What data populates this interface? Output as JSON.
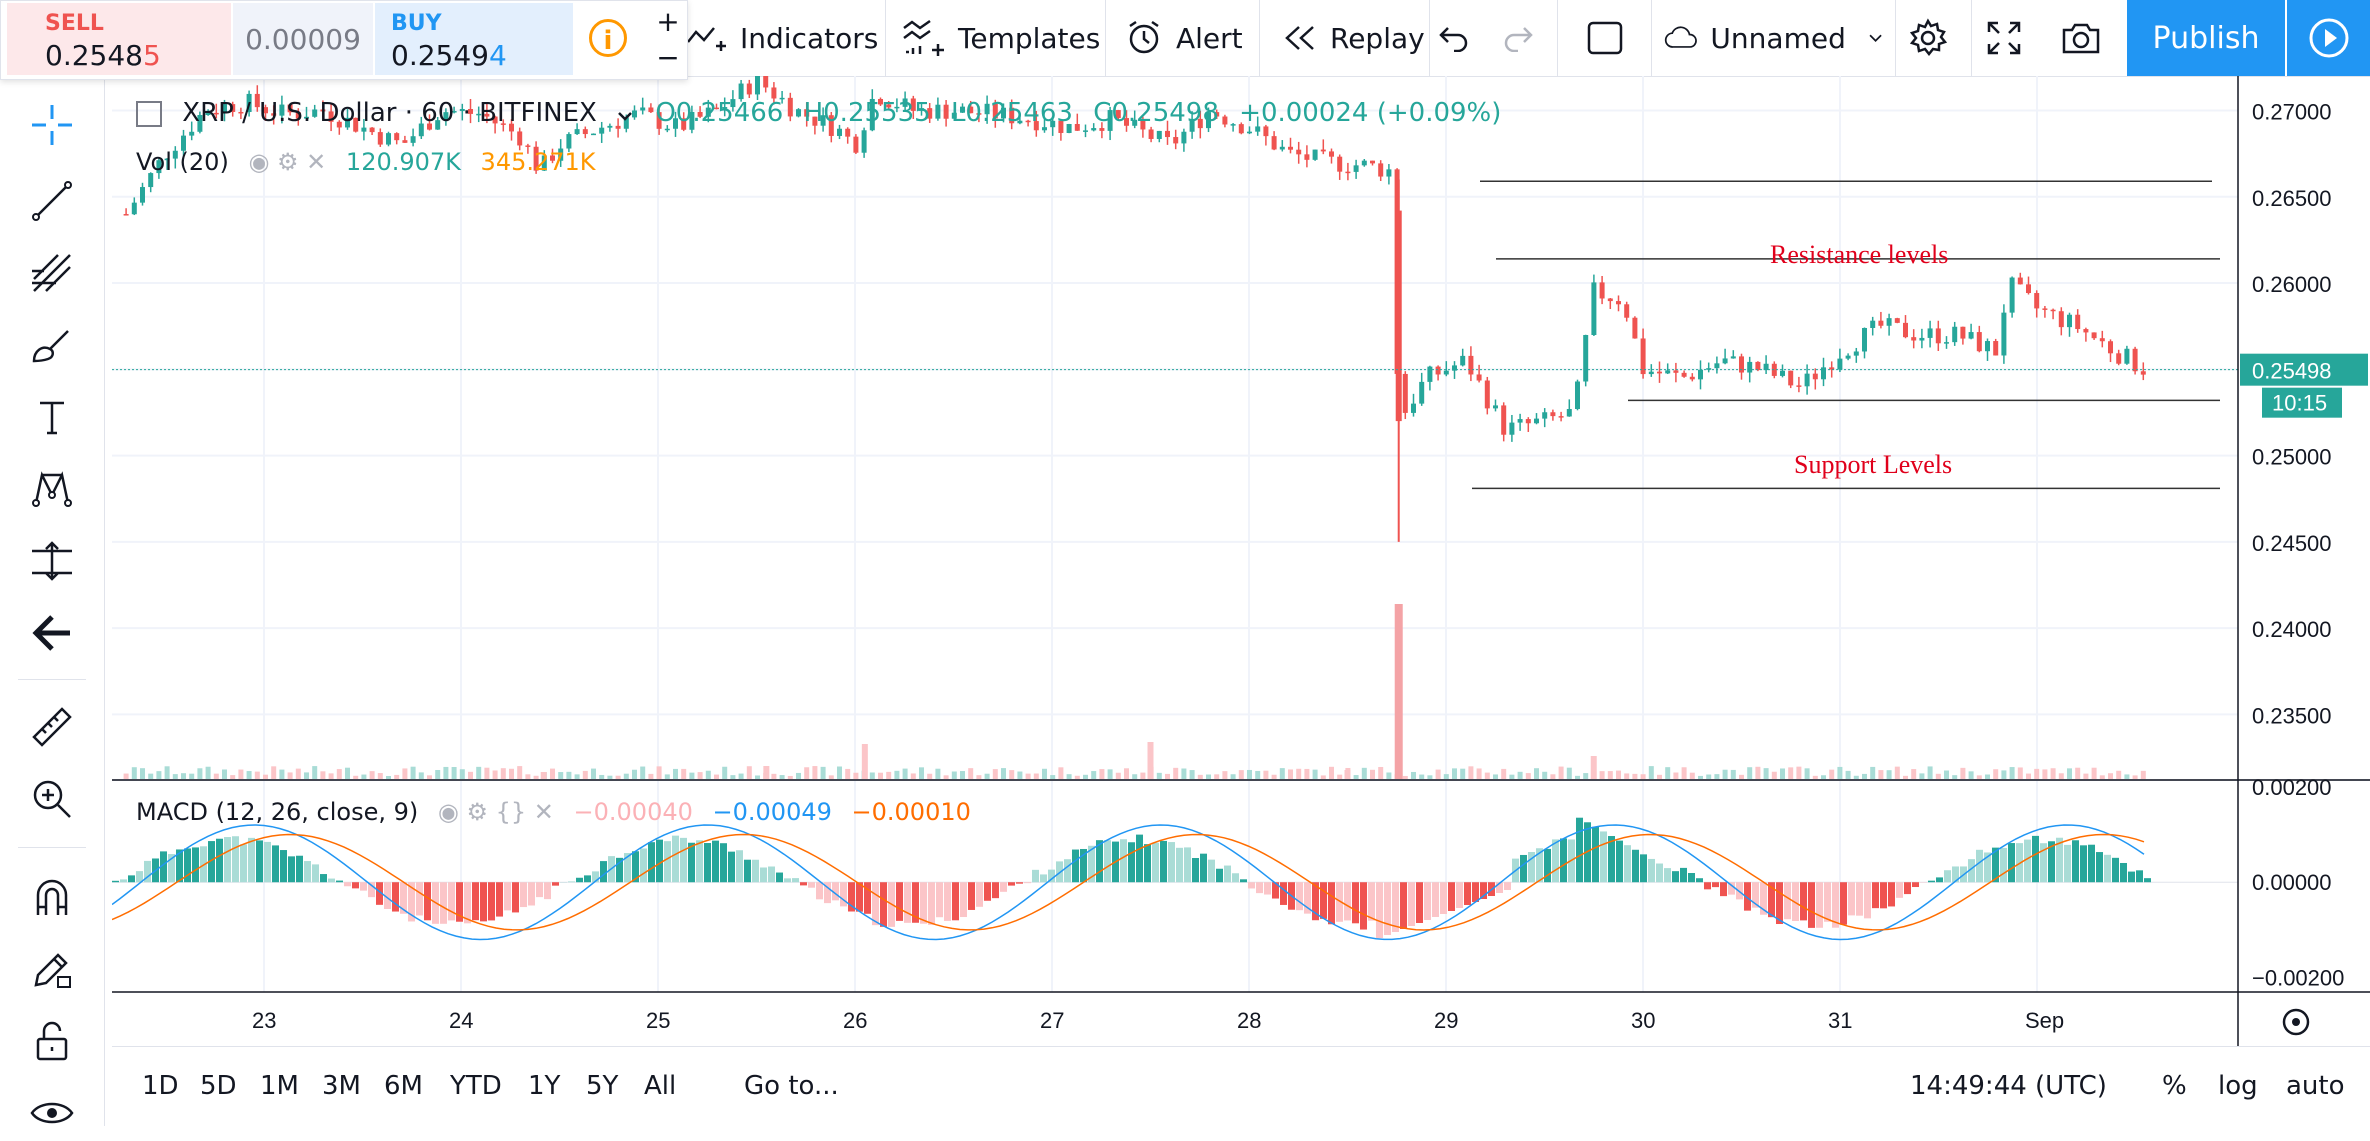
{
  "trade": {
    "sell_label": "SELL",
    "sell_price_main": "0.2548",
    "sell_price_last": "5",
    "spread": "0.00009",
    "buy_label": "BUY",
    "buy_price_main": "0.2549",
    "buy_price_last": "4",
    "info": "i",
    "plus": "+",
    "minus": "−"
  },
  "toolbar": {
    "indicators": "Indicators",
    "templates": "Templates",
    "alert": "Alert",
    "replay": "Replay",
    "layout_name": "Unnamed",
    "publish": "Publish"
  },
  "legend": {
    "symbol": "XRP / U.S. Dollar · 60 · BITFINEX",
    "open": "O0.25466",
    "high": "H0.25535",
    "low": "L0.25463",
    "close": "C0.25498",
    "change": "+0.00024 (+0.09%)",
    "vol_title": "Vol (20)",
    "vol_value": "120.907K",
    "vol_ma": "345.271K",
    "macd_title": "MACD (12, 26, close, 9)",
    "macd_hist": "−0.00040",
    "macd_line": "−0.00049",
    "macd_signal": "−0.00010"
  },
  "annotations": {
    "resistance": "Resistance levels",
    "support": "Support Levels"
  },
  "price_axis": [
    "0.27000",
    "0.26500",
    "0.26000",
    "0.25500",
    "0.25000",
    "0.24500",
    "0.24000",
    "0.23500"
  ],
  "macd_axis": [
    "0.00200",
    "0.00000",
    "−0.00200"
  ],
  "last_price": "0.25498",
  "countdown": "10:15",
  "time_axis": [
    "23",
    "24",
    "25",
    "26",
    "27",
    "28",
    "29",
    "30",
    "31",
    "Sep"
  ],
  "ranges": [
    "1D",
    "5D",
    "1M",
    "3M",
    "6M",
    "YTD",
    "1Y",
    "5Y",
    "All"
  ],
  "goto": "Go to...",
  "clock": "14:49:44 (UTC)",
  "scale_opts": {
    "pct": "%",
    "log": "log",
    "auto": "auto"
  },
  "colors": {
    "up": "#26a69a",
    "down": "#ef5350",
    "up_light": "#a9dcd6",
    "down_light": "#fbc5c8",
    "accent": "#2196f3",
    "macd": "#2196f3",
    "signal": "#ff6d00",
    "annotation": "#e0001b"
  },
  "chart_data": {
    "type": "candlestick",
    "price_range": [
      0.2312,
      0.272
    ],
    "x_range": [
      22.25,
      1.95
    ],
    "candles_summary": [
      [
        22.3,
        0.264
      ],
      [
        22.5,
        0.2675
      ],
      [
        22.7,
        0.27
      ],
      [
        22.9,
        0.2705
      ],
      [
        23.1,
        0.2698
      ],
      [
        23.3,
        0.27
      ],
      [
        23.5,
        0.269
      ],
      [
        23.7,
        0.268
      ],
      [
        23.9,
        0.27
      ],
      [
        24.1,
        0.2698
      ],
      [
        24.3,
        0.2685
      ],
      [
        24.4,
        0.2665
      ],
      [
        24.5,
        0.268
      ],
      [
        24.7,
        0.269
      ],
      [
        24.9,
        0.2698
      ],
      [
        25.1,
        0.269
      ],
      [
        25.3,
        0.27
      ],
      [
        25.5,
        0.2718
      ],
      [
        25.7,
        0.27
      ],
      [
        25.9,
        0.269
      ],
      [
        26.0,
        0.268
      ],
      [
        26.1,
        0.271
      ],
      [
        26.3,
        0.27
      ],
      [
        26.5,
        0.27
      ],
      [
        26.7,
        0.2698
      ],
      [
        26.9,
        0.2695
      ],
      [
        27.1,
        0.269
      ],
      [
        27.3,
        0.2695
      ],
      [
        27.5,
        0.2685
      ],
      [
        27.6,
        0.268
      ],
      [
        27.8,
        0.27
      ],
      [
        28.0,
        0.269
      ],
      [
        28.2,
        0.2675
      ],
      [
        28.4,
        0.267
      ],
      [
        28.6,
        0.2668
      ],
      [
        28.72,
        0.2665
      ],
      [
        28.76,
        0.252
      ],
      [
        28.9,
        0.2545
      ],
      [
        29.1,
        0.2555
      ],
      [
        29.3,
        0.2515
      ],
      [
        29.5,
        0.252
      ],
      [
        29.65,
        0.2525
      ],
      [
        29.75,
        0.2595
      ],
      [
        29.9,
        0.259
      ],
      [
        30.0,
        0.255
      ],
      [
        30.2,
        0.2545
      ],
      [
        30.4,
        0.2555
      ],
      [
        30.6,
        0.255
      ],
      [
        30.8,
        0.254
      ],
      [
        31.0,
        0.256
      ],
      [
        31.2,
        0.2575
      ],
      [
        31.4,
        0.257
      ],
      [
        31.6,
        0.257
      ],
      [
        31.8,
        0.256
      ],
      [
        31.85,
        0.26
      ],
      [
        32.0,
        0.2585
      ],
      [
        32.2,
        0.2575
      ],
      [
        32.4,
        0.256
      ],
      [
        32.55,
        0.255
      ]
    ],
    "volume_spike_x": 28.76,
    "resistance_levels": [
      0.2659,
      0.2614
    ],
    "support_levels": [
      0.2532,
      0.2481
    ],
    "macd_range": [
      -0.0023,
      0.0021
    ]
  }
}
